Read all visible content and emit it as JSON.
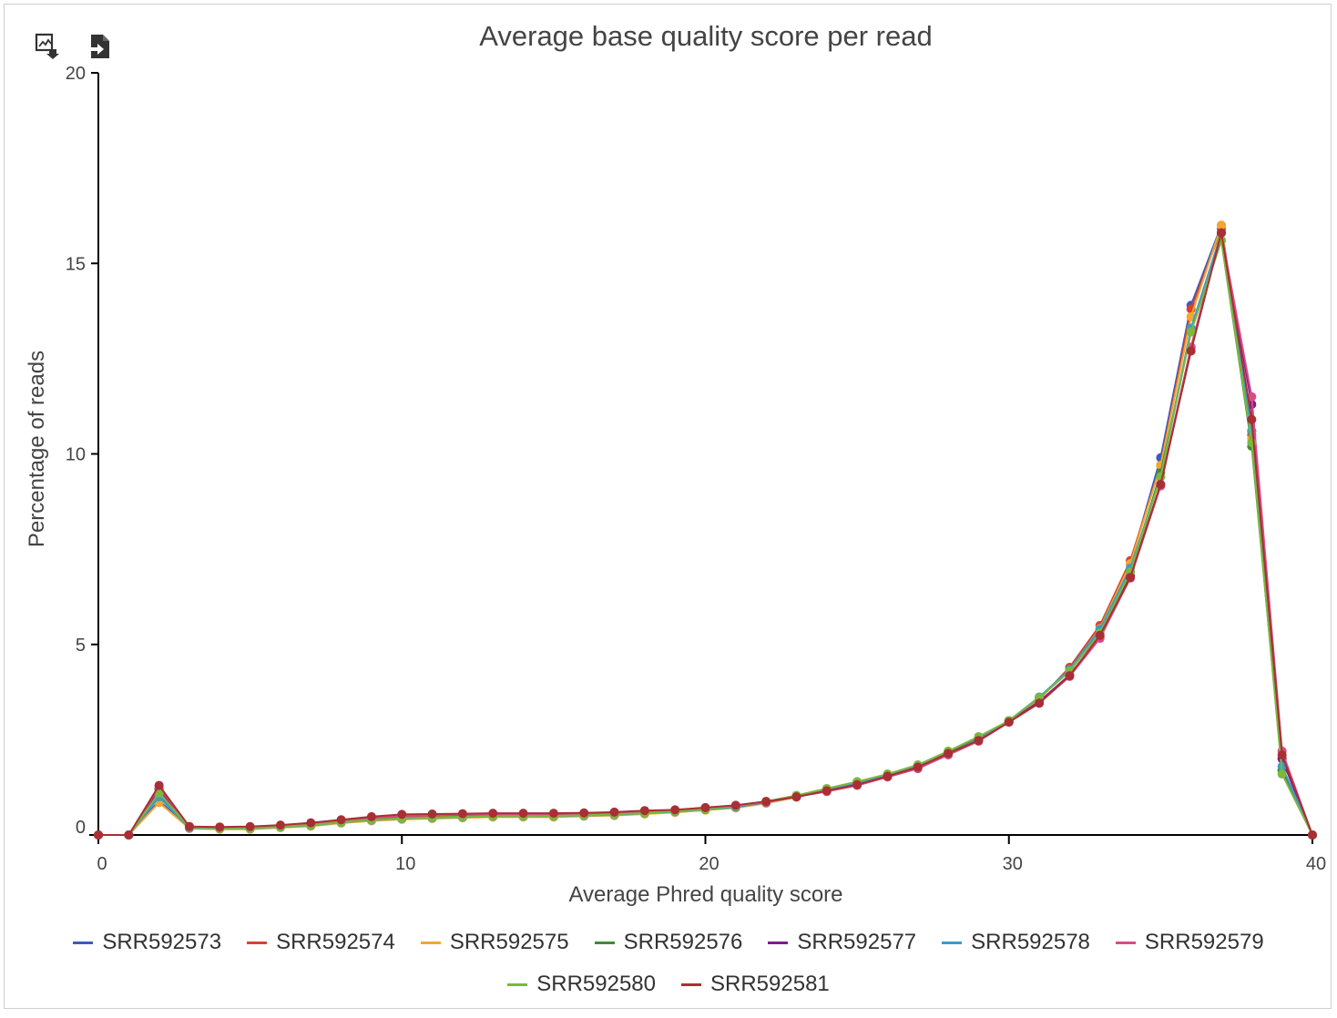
{
  "toolbar": {
    "icons": [
      "download-image-icon",
      "export-data-icon"
    ]
  },
  "chart_data": {
    "type": "line",
    "title": "Average base quality score per read",
    "xlabel": "Average Phred quality score",
    "ylabel": "Percentage of reads",
    "xlim": [
      0,
      40
    ],
    "ylim": [
      0,
      20
    ],
    "xticks": [
      0,
      10,
      20,
      30,
      40
    ],
    "yticks": [
      0,
      5,
      10,
      15,
      20
    ],
    "grid": false,
    "legend_position": "bottom",
    "x": [
      0,
      1,
      2,
      3,
      4,
      5,
      6,
      7,
      8,
      9,
      10,
      11,
      12,
      13,
      14,
      15,
      16,
      17,
      18,
      19,
      20,
      21,
      22,
      23,
      24,
      25,
      26,
      27,
      28,
      29,
      30,
      31,
      32,
      33,
      34,
      35,
      36,
      37,
      38,
      39,
      40
    ],
    "series": [
      {
        "name": "SRR592573",
        "color": "#3c5ac4",
        "values": [
          0,
          0,
          0.9,
          0.18,
          0.16,
          0.16,
          0.2,
          0.24,
          0.32,
          0.38,
          0.42,
          0.44,
          0.46,
          0.48,
          0.48,
          0.48,
          0.5,
          0.52,
          0.56,
          0.6,
          0.66,
          0.72,
          0.84,
          1.0,
          1.18,
          1.36,
          1.56,
          1.8,
          2.12,
          2.5,
          3.0,
          3.6,
          4.3,
          5.4,
          7.1,
          9.9,
          13.9,
          16.0,
          10.6,
          1.7,
          0
        ]
      },
      {
        "name": "SRR592574",
        "color": "#d6442c",
        "values": [
          0,
          0,
          1.2,
          0.22,
          0.2,
          0.2,
          0.24,
          0.28,
          0.36,
          0.42,
          0.46,
          0.48,
          0.5,
          0.52,
          0.52,
          0.52,
          0.54,
          0.56,
          0.6,
          0.64,
          0.7,
          0.76,
          0.86,
          1.02,
          1.18,
          1.36,
          1.56,
          1.82,
          2.16,
          2.52,
          3.0,
          3.56,
          4.4,
          5.5,
          7.2,
          9.7,
          13.8,
          15.9,
          10.5,
          2.0,
          0
        ]
      },
      {
        "name": "SRR592575",
        "color": "#f3a630",
        "values": [
          0,
          0,
          0.85,
          0.17,
          0.15,
          0.15,
          0.19,
          0.23,
          0.31,
          0.37,
          0.41,
          0.43,
          0.45,
          0.47,
          0.47,
          0.47,
          0.49,
          0.51,
          0.55,
          0.59,
          0.65,
          0.71,
          0.83,
          0.99,
          1.17,
          1.35,
          1.55,
          1.79,
          2.11,
          2.49,
          2.98,
          3.58,
          4.32,
          5.42,
          7.12,
          9.7,
          13.6,
          16.0,
          10.4,
          1.7,
          0
        ]
      },
      {
        "name": "SRR592576",
        "color": "#3f8a35",
        "values": [
          0,
          0,
          1.05,
          0.2,
          0.18,
          0.18,
          0.22,
          0.26,
          0.34,
          0.4,
          0.44,
          0.46,
          0.48,
          0.5,
          0.5,
          0.5,
          0.52,
          0.54,
          0.58,
          0.62,
          0.68,
          0.74,
          0.86,
          1.02,
          1.2,
          1.38,
          1.58,
          1.82,
          2.14,
          2.54,
          3.0,
          3.6,
          4.3,
          5.3,
          6.9,
          9.5,
          13.2,
          15.6,
          10.2,
          1.7,
          0
        ]
      },
      {
        "name": "SRR592577",
        "color": "#7e1c8c",
        "values": [
          0,
          0,
          1.2,
          0.2,
          0.19,
          0.2,
          0.24,
          0.3,
          0.38,
          0.45,
          0.5,
          0.52,
          0.54,
          0.55,
          0.55,
          0.55,
          0.56,
          0.58,
          0.62,
          0.64,
          0.7,
          0.76,
          0.86,
          1.0,
          1.16,
          1.33,
          1.54,
          1.78,
          2.12,
          2.48,
          2.98,
          3.5,
          4.2,
          5.2,
          6.8,
          9.2,
          12.8,
          15.8,
          11.3,
          2.0,
          0
        ]
      },
      {
        "name": "SRR592578",
        "color": "#3c9cc8",
        "values": [
          0,
          0,
          1.0,
          0.18,
          0.17,
          0.17,
          0.21,
          0.25,
          0.33,
          0.39,
          0.43,
          0.45,
          0.47,
          0.49,
          0.49,
          0.49,
          0.51,
          0.53,
          0.57,
          0.61,
          0.67,
          0.73,
          0.85,
          1.01,
          1.19,
          1.37,
          1.57,
          1.81,
          2.13,
          2.51,
          3.0,
          3.62,
          4.34,
          5.4,
          7.0,
          9.4,
          13.3,
          15.8,
          10.6,
          1.8,
          0
        ]
      },
      {
        "name": "SRR592579",
        "color": "#d94b86",
        "values": [
          0,
          0,
          1.25,
          0.2,
          0.19,
          0.2,
          0.24,
          0.3,
          0.38,
          0.45,
          0.5,
          0.52,
          0.54,
          0.55,
          0.55,
          0.55,
          0.56,
          0.58,
          0.62,
          0.64,
          0.7,
          0.76,
          0.86,
          1.0,
          1.14,
          1.3,
          1.52,
          1.74,
          2.1,
          2.46,
          2.96,
          3.46,
          4.16,
          5.16,
          6.74,
          9.16,
          12.8,
          15.8,
          11.5,
          2.2,
          0
        ]
      },
      {
        "name": "SRR592580",
        "color": "#7cb83d",
        "values": [
          0,
          0,
          1.1,
          0.2,
          0.18,
          0.18,
          0.22,
          0.26,
          0.34,
          0.4,
          0.44,
          0.46,
          0.48,
          0.5,
          0.5,
          0.5,
          0.52,
          0.54,
          0.58,
          0.62,
          0.68,
          0.76,
          0.88,
          1.04,
          1.22,
          1.4,
          1.6,
          1.84,
          2.2,
          2.58,
          3.0,
          3.6,
          4.3,
          5.3,
          6.9,
          9.4,
          13.2,
          15.6,
          10.3,
          1.6,
          0
        ]
      },
      {
        "name": "SRR592581",
        "color": "#a82f35",
        "values": [
          0,
          0,
          1.3,
          0.22,
          0.21,
          0.22,
          0.26,
          0.32,
          0.4,
          0.48,
          0.54,
          0.55,
          0.56,
          0.57,
          0.57,
          0.57,
          0.58,
          0.6,
          0.64,
          0.66,
          0.72,
          0.78,
          0.88,
          1.0,
          1.16,
          1.32,
          1.54,
          1.78,
          2.14,
          2.48,
          2.96,
          3.46,
          4.18,
          5.24,
          6.76,
          9.2,
          12.7,
          15.8,
          10.9,
          2.1,
          0
        ]
      }
    ]
  }
}
